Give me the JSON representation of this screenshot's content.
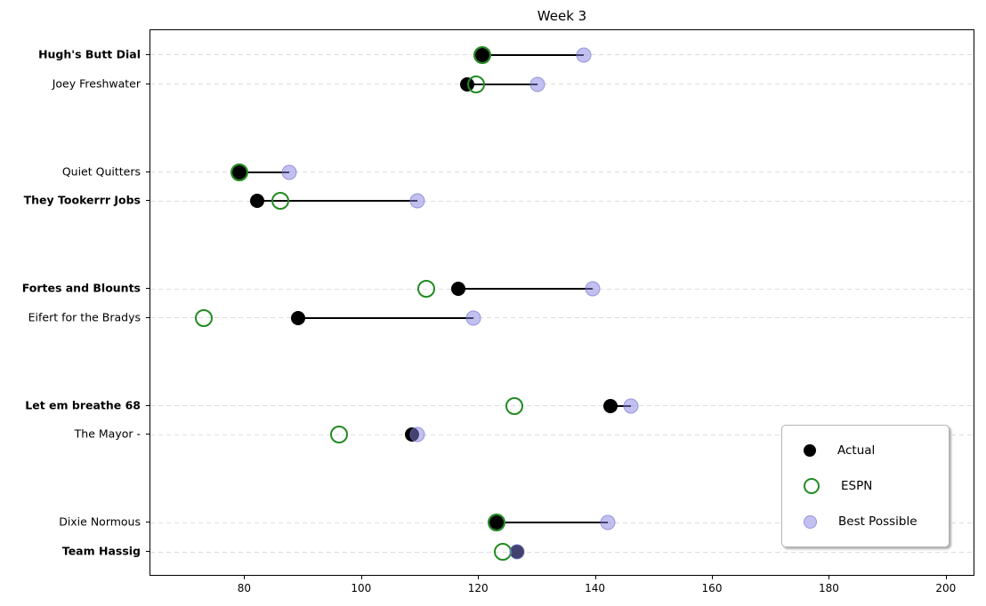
{
  "chart_data": {
    "type": "scatter",
    "variant": "dumbbell-dot-plot",
    "title": "Week 3",
    "xlabel": "",
    "ylabel": "",
    "x_ticks": [
      80,
      100,
      120,
      140,
      160,
      180,
      200
    ],
    "xlim": [
      63.8,
      204.9
    ],
    "ylim": [
      -0.85,
      17.85
    ],
    "grid": "horizontal-dashed",
    "legend_position": "lower right",
    "legend_items": [
      "Actual",
      "ESPN",
      "Best Possible"
    ],
    "series_meta": {
      "actual": {
        "label": "Actual",
        "color": "#000000",
        "style": "filled-circle"
      },
      "espn": {
        "label": "ESPN",
        "color": "#228B22",
        "style": "open-circle"
      },
      "best_possible": {
        "label": "Best Possible",
        "color": "#8582e0",
        "style": "translucent-filled-circle"
      }
    },
    "connector": {
      "from": "actual",
      "to": "best_possible",
      "color": "#000000"
    },
    "rows": [
      {
        "team": "Hugh's Butt Dial",
        "bold": true,
        "row_unit": 0,
        "actual": 120.5,
        "espn": 120.5,
        "best_possible": 138
      },
      {
        "team": "Joey Freshwater",
        "bold": false,
        "row_unit": 1,
        "actual": 118,
        "espn": 119.5,
        "best_possible": 130
      },
      {
        "team": "Quiet Quitters",
        "bold": false,
        "row_unit": 4,
        "actual": 79,
        "espn": 79,
        "best_possible": 87.5
      },
      {
        "team": "They Tookerrr Jobs",
        "bold": true,
        "row_unit": 5,
        "actual": 82,
        "espn": 86,
        "best_possible": 109.5
      },
      {
        "team": "Fortes and Blounts",
        "bold": true,
        "row_unit": 8,
        "actual": 116.5,
        "espn": 111,
        "best_possible": 139.5
      },
      {
        "team": "Eifert for the Bradys",
        "bold": false,
        "row_unit": 9,
        "actual": 89,
        "espn": 73,
        "best_possible": 119
      },
      {
        "team": "Let em breathe 68",
        "bold": true,
        "row_unit": 12,
        "actual": 142.5,
        "espn": 126,
        "best_possible": 146
      },
      {
        "team": "The Mayor -",
        "bold": false,
        "row_unit": 13,
        "actual": 108.5,
        "espn": 96,
        "best_possible": 109.5
      },
      {
        "team": "Dixie Normous",
        "bold": false,
        "row_unit": 16,
        "actual": 123,
        "espn": 123,
        "best_possible": 142
      },
      {
        "team": "Team Hassig",
        "bold": true,
        "row_unit": 17,
        "actual": 126.5,
        "espn": 124,
        "best_possible": 126.5
      }
    ]
  }
}
